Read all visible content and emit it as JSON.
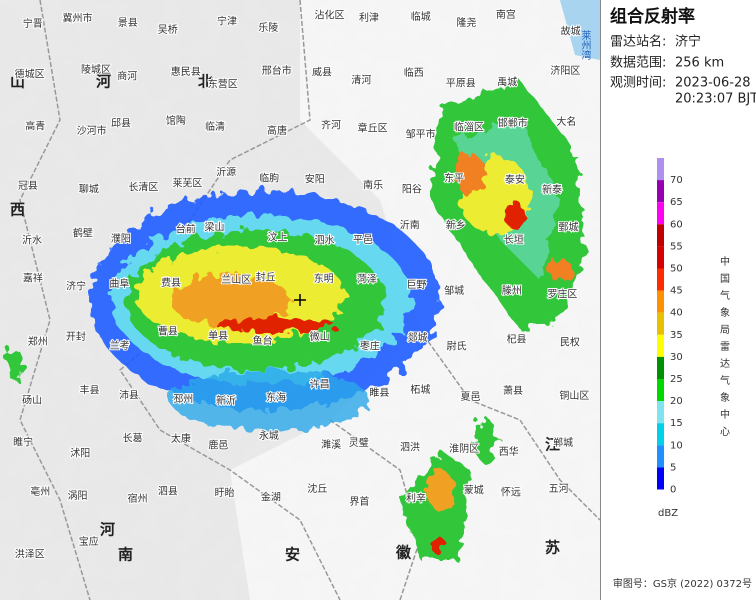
{
  "panel": {
    "title": "组合反射率",
    "station_label": "雷达站名:",
    "station": "济宁",
    "range_label": "数据范围:",
    "range": "256 km",
    "time_label": "观测时间:",
    "date": "2023-06-28",
    "time": "20:23:07 BJT"
  },
  "legend": {
    "unit": "dBZ",
    "agency": "中国气象局雷达气象中心",
    "levels": [
      {
        "value": 70,
        "color": "#ad90f0"
      },
      {
        "value": 65,
        "color": "#9600b4"
      },
      {
        "value": 60,
        "color": "#ff00f0"
      },
      {
        "value": 55,
        "color": "#c00000"
      },
      {
        "value": 50,
        "color": "#d60000"
      },
      {
        "value": 45,
        "color": "#ff2a00"
      },
      {
        "value": 40,
        "color": "#ff9000"
      },
      {
        "value": 35,
        "color": "#e7c000"
      },
      {
        "value": 30,
        "color": "#ffff00"
      },
      {
        "value": 25,
        "color": "#019000"
      },
      {
        "value": 20,
        "color": "#00d800"
      },
      {
        "value": 15,
        "color": "#7fe3f0"
      },
      {
        "value": 10,
        "color": "#00d0e8"
      },
      {
        "value": 5,
        "color": "#1e90ff"
      },
      {
        "value": 0,
        "color": "#0000f6"
      }
    ]
  },
  "map": {
    "provinces": [
      "山",
      "西",
      "河",
      "北",
      "河",
      "南",
      "安",
      "徽",
      "江",
      "苏"
    ],
    "sea": "莱州湾",
    "places": [
      "宁晋",
      "冀州市",
      "景县",
      "吴桥",
      "宁津",
      "乐陵",
      "沾化区",
      "利津",
      "临城",
      "隆尧",
      "南宫",
      "故城",
      "德城区",
      "陵城区",
      "商河",
      "惠民县",
      "东营区",
      "邢台市",
      "威县",
      "清河",
      "临西",
      "平原县",
      "禹城",
      "济阳区",
      "高青",
      "沙河市",
      "邱县",
      "馆陶",
      "临清",
      "高唐",
      "齐河",
      "章丘区",
      "邹平市",
      "临淄区",
      "邯郸市",
      "大名",
      "冠县",
      "聊城",
      "长清区",
      "莱芜区",
      "沂源",
      "临朐",
      "安阳",
      "南乐",
      "阳谷",
      "东平",
      "泰安",
      "新泰",
      "沂水",
      "鹤壁",
      "濮阳",
      "台前",
      "梁山",
      "汶上",
      "泗水",
      "平邑",
      "沂南",
      "新乡",
      "长垣",
      "鄄城",
      "嘉祥",
      "济宁",
      "曲阜",
      "费县",
      "兰山区",
      "封丘",
      "东明",
      "菏泽",
      "巨野",
      "邹城",
      "滕州",
      "罗庄区",
      "郑州",
      "开封",
      "兰考",
      "曹县",
      "单县",
      "鱼台",
      "微山",
      "枣庄",
      "郯城",
      "尉氏",
      "杞县",
      "民权",
      "砀山",
      "丰县",
      "沛县",
      "邳州",
      "新沂",
      "东海",
      "许昌",
      "睢县",
      "柘城",
      "夏邑",
      "萧县",
      "铜山区",
      "睢宁",
      "沭阳",
      "长葛",
      "太康",
      "鹿邑",
      "永城",
      "濉溪",
      "灵璧",
      "泗洪",
      "淮阴区",
      "西华",
      "郸城",
      "亳州",
      "涡阳",
      "宿州",
      "泗县",
      "盱眙",
      "金湖",
      "沈丘",
      "界首",
      "利辛",
      "蒙城",
      "怀远",
      "五河",
      "洪泽区",
      "宝应"
    ]
  },
  "footer": "审图号：GS京 (2022) 0372号"
}
